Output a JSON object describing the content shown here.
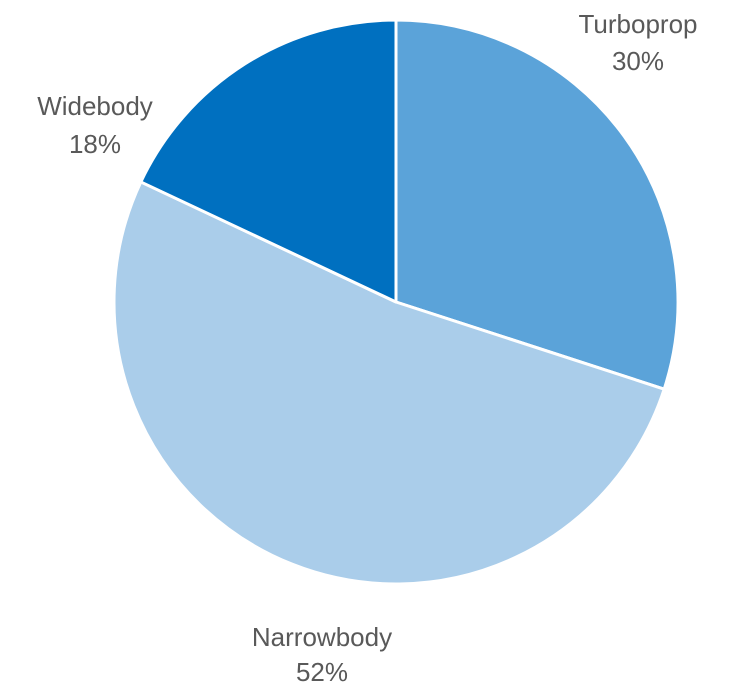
{
  "chart_data": {
    "type": "pie",
    "title": "",
    "categories": [
      "Turboprop",
      "Narrowbody",
      "Widebody"
    ],
    "values": [
      30,
      52,
      18
    ],
    "value_labels": [
      "30%",
      "52%",
      "18%"
    ],
    "colors": [
      "#5BA3D9",
      "#AACDEA",
      "#0070C0"
    ],
    "start_angle_deg": 0,
    "direction": "clockwise",
    "legend": "none",
    "slice_border_color": "#ffffff"
  }
}
